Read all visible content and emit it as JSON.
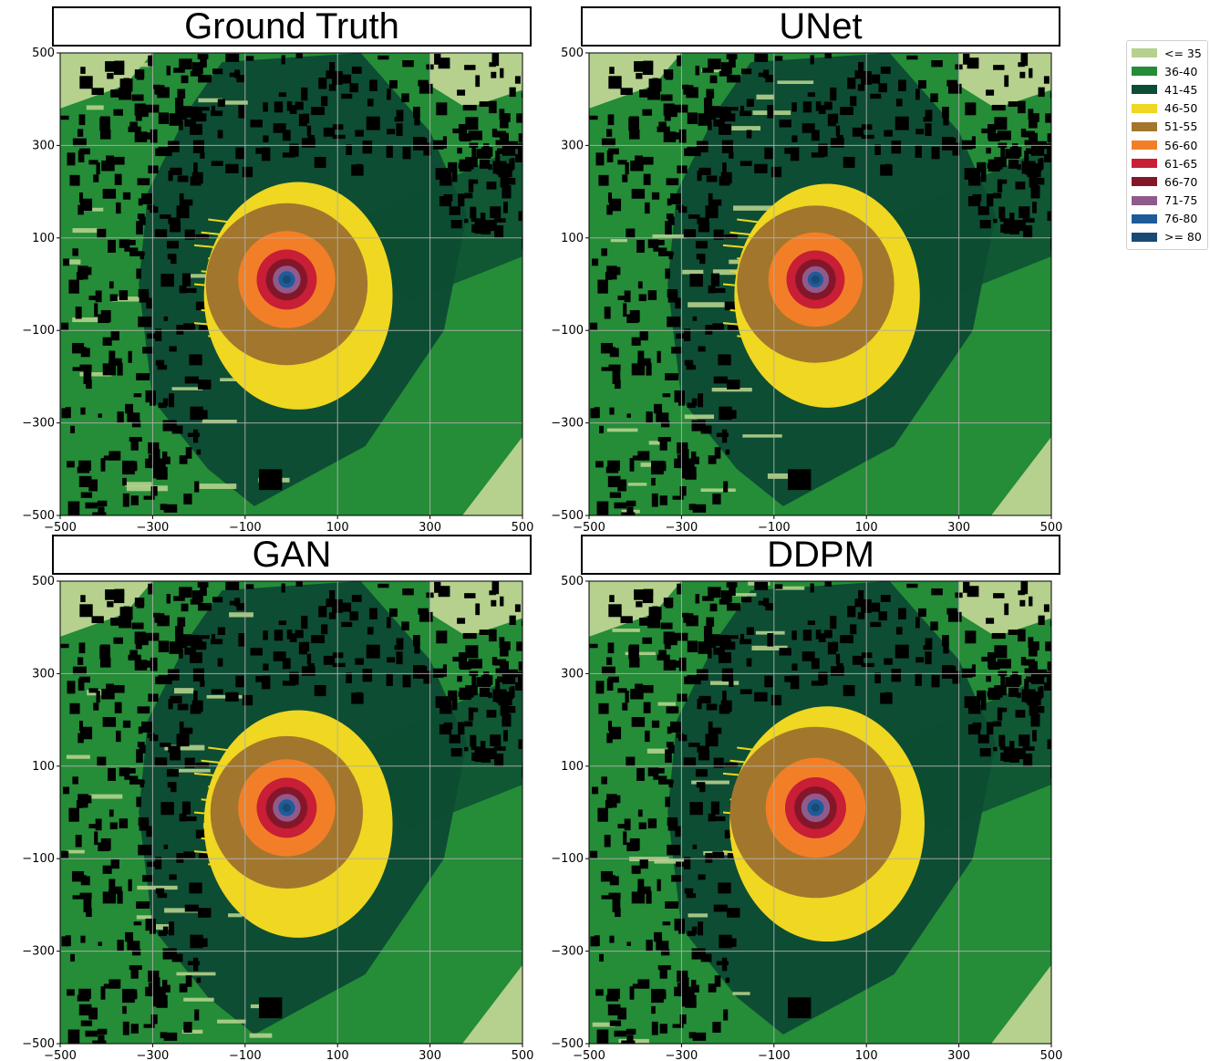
{
  "colors": {
    "building": "#000000",
    "grid": "#b0b0b0"
  },
  "legend": {
    "items": [
      {
        "label": "<= 35",
        "color": "#b5d18d"
      },
      {
        "label": "36-40",
        "color": "#258c37"
      },
      {
        "label": "41-45",
        "color": "#0d4d33"
      },
      {
        "label": "46-50",
        "color": "#efd722"
      },
      {
        "label": "51-55",
        "color": "#a3762d"
      },
      {
        "label": "56-60",
        "color": "#f27f27"
      },
      {
        "label": "61-65",
        "color": "#c81e36"
      },
      {
        "label": "66-70",
        "color": "#84162a"
      },
      {
        "label": "71-75",
        "color": "#8f5b8c"
      },
      {
        "label": "76-80",
        "color": "#1e5b9a"
      },
      {
        "label": ">= 80",
        "color": "#184a73"
      }
    ]
  },
  "chart_data": [
    {
      "type": "heatmap",
      "title": "Ground Truth",
      "xlim": [
        -500,
        500
      ],
      "ylim": [
        -500,
        500
      ],
      "xticks": [
        -500,
        -300,
        -100,
        100,
        300,
        500
      ],
      "yticks": [
        500,
        300,
        100,
        -100,
        -300,
        -500
      ],
      "grid": true,
      "center": [
        -10,
        10
      ],
      "contour_radii": {
        "46-50": 300,
        "51-55": 175,
        "56-60": 105,
        "61-65": 65,
        "66-70": 45,
        "71-75": 30,
        "76-80": 18,
        ">= 80": 9
      }
    },
    {
      "type": "heatmap",
      "title": "UNet",
      "xlim": [
        -500,
        500
      ],
      "ylim": [
        -500,
        500
      ],
      "xticks": [
        -500,
        -300,
        -100,
        100,
        300,
        500
      ],
      "yticks": [
        500,
        300,
        100,
        -100,
        -300,
        -500
      ],
      "grid": true,
      "center": [
        -10,
        10
      ],
      "contour_radii": {
        "46-50": 295,
        "51-55": 170,
        "56-60": 102,
        "61-65": 63,
        "66-70": 44,
        "71-75": 29,
        "76-80": 17,
        ">= 80": 9
      }
    },
    {
      "type": "heatmap",
      "title": "GAN",
      "xlim": [
        -500,
        500
      ],
      "ylim": [
        -500,
        500
      ],
      "xticks": [
        -500,
        -300,
        -100,
        100,
        300,
        500
      ],
      "yticks": [
        500,
        300,
        100,
        -100,
        -300,
        -500
      ],
      "grid": true,
      "center": [
        -10,
        10
      ],
      "contour_radii": {
        "46-50": 300,
        "51-55": 165,
        "56-60": 105,
        "61-65": 65,
        "66-70": 45,
        "71-75": 30,
        "76-80": 18,
        ">= 80": 9
      }
    },
    {
      "type": "heatmap",
      "title": "DDPM",
      "xlim": [
        -500,
        500
      ],
      "ylim": [
        -500,
        500
      ],
      "xticks": [
        -500,
        -300,
        -100,
        100,
        300,
        500
      ],
      "yticks": [
        500,
        300,
        100,
        -100,
        -300,
        -500
      ],
      "grid": true,
      "center": [
        -10,
        10
      ],
      "contour_radii": {
        "46-50": 310,
        "51-55": 185,
        "56-60": 108,
        "61-65": 66,
        "66-70": 46,
        "71-75": 31,
        "76-80": 18,
        ">= 80": 9
      }
    }
  ]
}
